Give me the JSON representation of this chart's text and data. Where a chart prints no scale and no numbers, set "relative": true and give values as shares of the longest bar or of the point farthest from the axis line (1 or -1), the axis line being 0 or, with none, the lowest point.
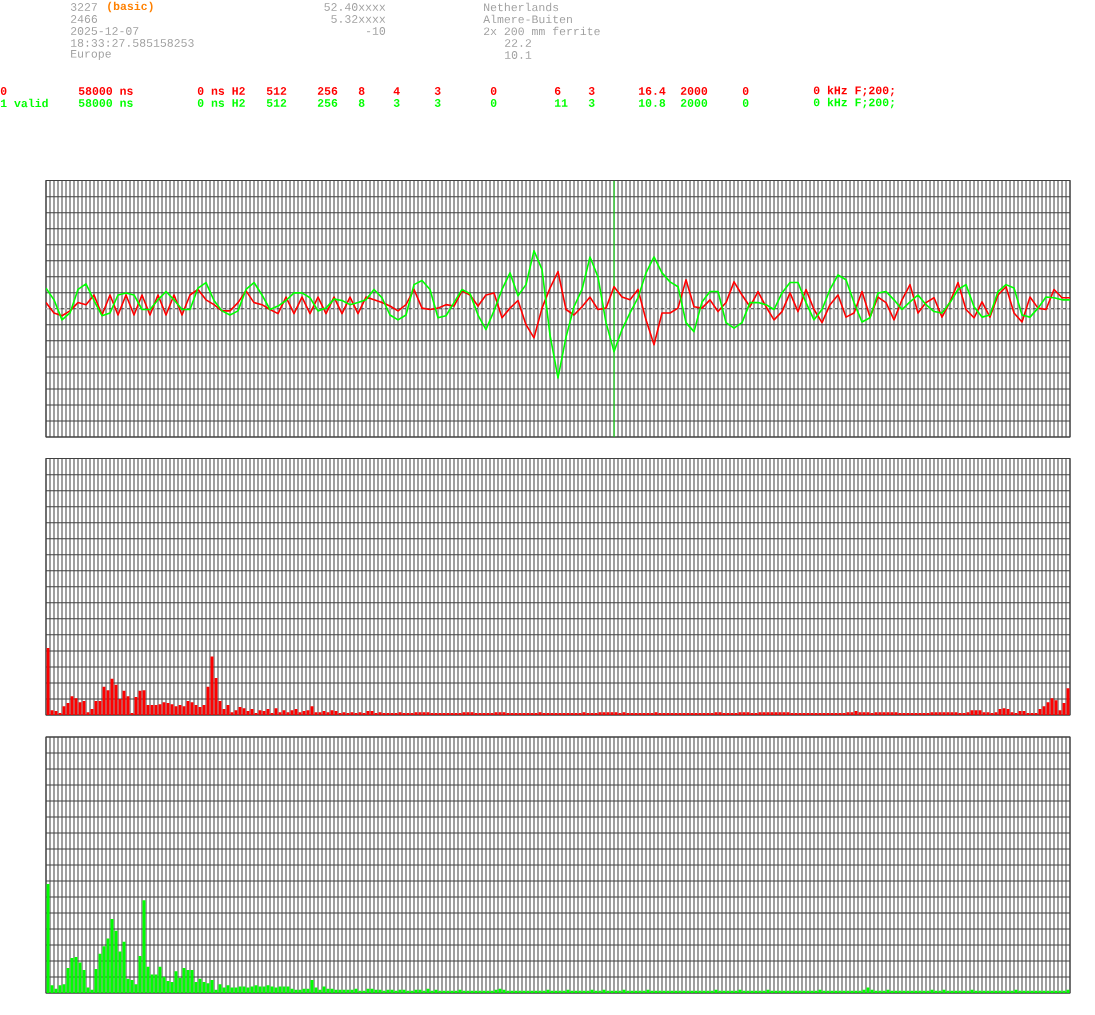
{
  "chart_data": [
    {
      "type": "line",
      "relative": true,
      "grid": true,
      "categories": [
        null,
        null,
        null,
        null,
        null,
        null,
        null,
        null,
        null,
        null,
        null,
        null,
        null,
        null,
        null,
        null,
        null,
        null,
        null,
        null,
        null,
        null,
        null,
        null,
        null,
        null,
        null,
        null,
        null,
        null,
        null,
        null,
        null,
        null,
        null,
        null,
        null,
        null,
        null,
        null,
        null,
        null,
        null,
        null,
        null,
        null,
        null,
        null,
        null,
        null,
        null,
        null,
        null,
        null,
        null,
        null,
        null,
        null,
        null,
        null,
        null,
        null,
        null,
        null,
        null,
        null,
        null,
        null,
        null,
        null,
        null,
        null,
        null,
        null,
        null,
        null,
        null,
        null,
        null,
        null,
        null,
        null,
        null,
        null,
        null,
        null,
        null,
        null,
        null,
        null,
        null,
        null,
        null,
        null,
        null,
        null,
        null,
        null,
        null,
        null,
        null,
        null,
        null,
        null,
        null,
        null,
        null,
        null,
        null,
        null,
        null,
        null,
        null,
        null,
        null,
        null,
        null,
        null,
        null,
        null,
        null,
        null,
        null,
        null,
        null,
        null,
        null,
        null,
        null
      ],
      "series": [
        {
          "color": "#ff0000",
          "values": [
            0.09,
            -0.06,
            -0.1,
            -0.03,
            0.09,
            0.06,
            0.2,
            -0.09,
            0.2,
            -0.09,
            0.2,
            -0.09,
            0.2,
            -0.09,
            0.2,
            -0.09,
            0.2,
            -0.09,
            0.2,
            0.28,
            0.13,
            0.06,
            -0.03,
            -0.03,
            0.09,
            0.26,
            0.09,
            0.06,
            -0.01,
            -0.07,
            0.17,
            -0.07,
            0.17,
            -0.07,
            0.17,
            -0.07,
            0.17,
            -0.07,
            0.17,
            -0.07,
            0.17,
            0.13,
            0.09,
            0.04,
            -0.03,
            0.06,
            0.28,
            0.01,
            -0.01,
            0.01,
            0.06,
            0.04,
            0.26,
            0.2,
            0.04,
            0.2,
            0.23,
            -0.13,
            0.01,
            0.12,
            -0.23,
            -0.42,
            0.01,
            0.3,
            0.54,
            -0.01,
            -0.09,
            0.03,
            0.17,
            -0.01,
            0.01,
            0.32,
            0.17,
            0.13,
            0.28,
            -0.16,
            -0.52,
            -0.06,
            -0.06,
            0.01,
            0.42,
            0.03,
            0.01,
            0.13,
            -0.04,
            0.09,
            0.39,
            0.2,
            0.03,
            0.25,
            0.03,
            -0.16,
            -0.04,
            0.23,
            -0.04,
            0.28,
            -0.01,
            -0.2,
            0.06,
            0.2,
            -0.12,
            -0.06,
            0.25,
            -0.12,
            0.17,
            0.09,
            -0.16,
            0.13,
            0.35,
            -0.06,
            0.09,
            0.16,
            -0.12,
            0.1,
            0.38,
            -0.01,
            -0.13,
            0.1,
            -0.12,
            0.2,
            0.32,
            -0.06,
            -0.19,
            0.17,
            0.01,
            -0.01,
            0.28,
            0.16,
            0.16
          ]
        },
        {
          "color": "#00ff00",
          "values": [
            0.3,
            0.13,
            -0.16,
            -0.06,
            0.28,
            0.36,
            0.12,
            -0.1,
            -0.06,
            0.2,
            0.23,
            0.2,
            -0.01,
            -0.01,
            0.13,
            0.25,
            0.13,
            -0.01,
            -0.01,
            0.3,
            0.38,
            0.12,
            -0.03,
            -0.09,
            -0.03,
            0.28,
            0.38,
            0.2,
            -0.01,
            0.04,
            0.12,
            0.23,
            0.23,
            0.16,
            -0.03,
            0.01,
            0.14,
            0.12,
            0.06,
            0.09,
            0.13,
            0.28,
            0.16,
            -0.09,
            -0.16,
            -0.09,
            0.35,
            0.41,
            0.28,
            -0.13,
            -0.1,
            0.09,
            0.28,
            0.22,
            -0.09,
            -0.3,
            -0.03,
            0.28,
            0.52,
            0.19,
            0.35,
            0.84,
            0.57,
            -0.38,
            -1,
            -0.41,
            0.03,
            0.28,
            0.75,
            0.46,
            -0.2,
            -0.62,
            -0.3,
            -0.06,
            0.16,
            0.52,
            0.75,
            0.52,
            0.39,
            0.32,
            -0.2,
            -0.33,
            0.1,
            0.25,
            0.25,
            -0.2,
            -0.28,
            -0.2,
            0.09,
            0.09,
            0.06,
            -0.01,
            0.23,
            0.38,
            0.38,
            0.09,
            -0.16,
            -0.01,
            0.28,
            0.49,
            0.42,
            0.09,
            -0.19,
            -0.13,
            0.23,
            0.25,
            0.13,
            -0.01,
            0.1,
            0.2,
            0.06,
            -0.04,
            -0.06,
            0.09,
            0.28,
            0.35,
            0.03,
            -0.12,
            -0.09,
            0.25,
            0.35,
            0.3,
            -0.09,
            -0.12,
            0.01,
            0.17,
            0.16,
            0.13,
            0.13
          ]
        }
      ],
      "ref_lines": [
        {
          "axis": "y",
          "value": 0,
          "color": "#ffffff",
          "line_style": "dashed"
        }
      ],
      "annotations": [
        "3227",
        "(basic)",
        "2466",
        "2025-12-07",
        "18:33:27.585158253",
        "Europe",
        "52.40xxxx",
        "5.32xxxx",
        "-10",
        "Netherlands",
        "Almere-Buiten",
        "2x 200 mm ferrite",
        "22.2",
        "10.1",
        "0",
        "58000 ns",
        "0 ns H2",
        "512",
        "256",
        "8",
        "4",
        "3",
        "0",
        "6",
        "3",
        "16.4",
        "2000",
        "0",
        "0 kHz F;200;",
        "1 valid",
        "58000 ns",
        "0 ns H2",
        "512",
        "256",
        "8",
        "3",
        "3",
        "0",
        "11",
        "3",
        "10.8",
        "2000",
        "0",
        "0 kHz F;200;"
      ]
    },
    {
      "type": "bar",
      "relative": true,
      "grid": true,
      "color": "#ff0000",
      "categories": [
        null,
        null,
        null,
        null,
        null,
        null,
        null,
        null,
        null,
        null,
        null,
        null,
        null,
        null,
        null,
        null,
        null,
        null,
        null,
        null,
        null,
        null,
        null,
        null,
        null,
        null,
        null,
        null,
        null,
        null,
        null,
        null,
        null,
        null,
        null,
        null,
        null,
        null,
        null,
        null,
        null,
        null,
        null,
        null,
        null,
        null,
        null,
        null,
        null,
        null,
        null,
        null,
        null,
        null,
        null,
        null,
        null,
        null,
        null,
        null,
        null,
        null,
        null,
        null,
        null,
        null,
        null,
        null,
        null,
        null,
        null,
        null,
        null,
        null,
        null,
        null,
        null,
        null,
        null,
        null,
        null,
        null,
        null,
        null,
        null,
        null,
        null,
        null,
        null,
        null,
        null,
        null,
        null,
        null,
        null,
        null,
        null,
        null,
        null,
        null,
        null,
        null,
        null,
        null,
        null,
        null,
        null,
        null,
        null,
        null,
        null,
        null,
        null,
        null,
        null,
        null,
        null,
        null,
        null,
        null,
        null,
        null,
        null,
        null,
        null,
        null,
        null,
        null,
        null,
        null,
        null,
        null,
        null,
        null,
        null,
        null,
        null,
        null,
        null,
        null,
        null,
        null,
        null,
        null,
        null,
        null,
        null,
        null,
        null,
        null,
        null,
        null,
        null,
        null,
        null,
        null,
        null,
        null,
        null,
        null,
        null,
        null,
        null,
        null,
        null,
        null,
        null,
        null,
        null,
        null,
        null,
        null,
        null,
        null,
        null,
        null,
        null,
        null,
        null,
        null,
        null,
        null,
        null,
        null,
        null,
        null,
        null,
        null,
        null,
        null,
        null,
        null,
        null,
        null,
        null,
        null,
        null,
        null,
        null,
        null,
        null,
        null,
        null,
        null,
        null,
        null,
        null,
        null,
        null,
        null,
        null,
        null,
        null,
        null,
        null,
        null,
        null,
        null,
        null,
        null,
        null,
        null,
        null,
        null,
        null,
        null,
        null,
        null,
        null,
        null,
        null,
        null,
        null,
        null,
        null,
        null,
        null,
        null,
        null,
        null,
        null,
        null,
        null,
        null,
        null,
        null,
        null,
        null,
        null,
        null,
        null,
        null,
        null,
        null,
        null,
        null
      ],
      "values": [
        1,
        0.07,
        0.06,
        0.03,
        0.13,
        0.18,
        0.28,
        0.25,
        0.19,
        0.21,
        0.04,
        0.09,
        0.21,
        0.21,
        0.42,
        0.37,
        0.54,
        0.45,
        0.24,
        0.36,
        0.28,
        0.03,
        0.27,
        0.36,
        0.37,
        0.15,
        0.15,
        0.15,
        0.16,
        0.19,
        0.18,
        0.16,
        0.13,
        0.15,
        0.13,
        0.21,
        0.19,
        0.15,
        0.12,
        0.15,
        0.42,
        0.87,
        0.55,
        0.21,
        0.09,
        0.15,
        0.04,
        0.07,
        0.12,
        0.1,
        0.06,
        0.09,
        0.03,
        0.07,
        0.06,
        0.09,
        0.03,
        0.1,
        0.04,
        0.07,
        0.04,
        0.07,
        0.09,
        0.04,
        0.06,
        0.07,
        0.13,
        0.04,
        0.04,
        0.06,
        0.04,
        0.07,
        0.06,
        0.03,
        0.04,
        0.03,
        0.04,
        0.03,
        0.04,
        0.03,
        0.06,
        0.06,
        0.03,
        0.04,
        0.03,
        0.03,
        0.03,
        0.03,
        0.04,
        0.03,
        0.03,
        0.03,
        0.04,
        0.04,
        0.04,
        0.04,
        0.03,
        0.03,
        0.03,
        0.03,
        0.03,
        0.03,
        0.03,
        0.03,
        0.04,
        0.04,
        0.04,
        0.03,
        0.03,
        0.03,
        0.03,
        0.03,
        0.04,
        0.04,
        0.04,
        0.03,
        0.03,
        0.03,
        0.03,
        0.03,
        0.03,
        0.03,
        0.03,
        0.04,
        0.03,
        0.03,
        0.03,
        0.03,
        0.03,
        0.03,
        0.03,
        0.03,
        0.03,
        0.03,
        0.04,
        0.03,
        0.03,
        0.03,
        0.04,
        0.04,
        0.04,
        0.04,
        0.04,
        0.03,
        0.04,
        0.03,
        0.03,
        0.03,
        0.03,
        0.03,
        0.03,
        0.03,
        0.04,
        0.03,
        0.03,
        0.03,
        0.03,
        0.03,
        0.03,
        0.03,
        0.03,
        0.03,
        0.03,
        0.03,
        0.03,
        0.03,
        0.03,
        0.04,
        0.04,
        0.03,
        0.03,
        0.03,
        0.03,
        0.04,
        0.04,
        0.04,
        0.03,
        0.03,
        0.04,
        0.04,
        0.04,
        0.04,
        0.04,
        0.04,
        0.04,
        0.04,
        0.03,
        0.03,
        0.03,
        0.03,
        0.03,
        0.03,
        0.03,
        0.03,
        0.03,
        0.03,
        0.03,
        0.03,
        0.03,
        0.03,
        0.04,
        0.04,
        0.06,
        0.04,
        0.04,
        0.04,
        0.03,
        0.04,
        0.04,
        0.04,
        0.04,
        0.04,
        0.04,
        0.03,
        0.03,
        0.03,
        0.03,
        0.03,
        0.03,
        0.03,
        0.03,
        0.04,
        0.04,
        0.04,
        0.04,
        0.04,
        0.04,
        0.04,
        0.03,
        0.03,
        0.04,
        0.07,
        0.07,
        0.07,
        0.04,
        0.04,
        0.03,
        0.04,
        0.09,
        0.1,
        0.09,
        0.04,
        0.03,
        0.06,
        0.06,
        0.03,
        0.03,
        0.03,
        0.09,
        0.13,
        0.19,
        0.25,
        0.22,
        0.07,
        0.18,
        0.4
      ]
    },
    {
      "type": "bar",
      "relative": true,
      "grid": true,
      "color": "#00ff00",
      "categories": [
        null,
        null,
        null,
        null,
        null,
        null,
        null,
        null,
        null,
        null,
        null,
        null,
        null,
        null,
        null,
        null,
        null,
        null,
        null,
        null,
        null,
        null,
        null,
        null,
        null,
        null,
        null,
        null,
        null,
        null,
        null,
        null,
        null,
        null,
        null,
        null,
        null,
        null,
        null,
        null,
        null,
        null,
        null,
        null,
        null,
        null,
        null,
        null,
        null,
        null,
        null,
        null,
        null,
        null,
        null,
        null,
        null,
        null,
        null,
        null,
        null,
        null,
        null,
        null,
        null,
        null,
        null,
        null,
        null,
        null,
        null,
        null,
        null,
        null,
        null,
        null,
        null,
        null,
        null,
        null,
        null,
        null,
        null,
        null,
        null,
        null,
        null,
        null,
        null,
        null,
        null,
        null,
        null,
        null,
        null,
        null,
        null,
        null,
        null,
        null,
        null,
        null,
        null,
        null,
        null,
        null,
        null,
        null,
        null,
        null,
        null,
        null,
        null,
        null,
        null,
        null,
        null,
        null,
        null,
        null,
        null,
        null,
        null,
        null,
        null,
        null,
        null,
        null,
        null,
        null,
        null,
        null,
        null,
        null,
        null,
        null,
        null,
        null,
        null,
        null,
        null,
        null,
        null,
        null,
        null,
        null,
        null,
        null,
        null,
        null,
        null,
        null,
        null,
        null,
        null,
        null,
        null,
        null,
        null,
        null,
        null,
        null,
        null,
        null,
        null,
        null,
        null,
        null,
        null,
        null,
        null,
        null,
        null,
        null,
        null,
        null,
        null,
        null,
        null,
        null,
        null,
        null,
        null,
        null,
        null,
        null,
        null,
        null,
        null,
        null,
        null,
        null,
        null,
        null,
        null,
        null,
        null,
        null,
        null,
        null,
        null,
        null,
        null,
        null,
        null,
        null,
        null,
        null,
        null,
        null,
        null,
        null,
        null,
        null,
        null,
        null,
        null,
        null,
        null,
        null,
        null,
        null,
        null,
        null,
        null,
        null,
        null,
        null,
        null,
        null,
        null,
        null,
        null,
        null,
        null,
        null,
        null,
        null,
        null,
        null,
        null,
        null,
        null,
        null,
        null,
        null,
        null,
        null,
        null,
        null,
        null,
        null,
        null,
        null,
        null,
        null
      ],
      "values": [
        1,
        0.07,
        0.04,
        0.07,
        0.08,
        0.23,
        0.32,
        0.33,
        0.28,
        0.21,
        0.05,
        0.03,
        0.22,
        0.36,
        0.43,
        0.5,
        0.68,
        0.57,
        0.38,
        0.47,
        0.13,
        0.12,
        0.08,
        0.34,
        0.85,
        0.24,
        0.17,
        0.17,
        0.24,
        0.15,
        0.11,
        0.1,
        0.2,
        0.14,
        0.23,
        0.21,
        0.21,
        0.1,
        0.13,
        0.1,
        0.09,
        0.12,
        0.03,
        0.08,
        0.05,
        0.07,
        0.05,
        0.05,
        0.06,
        0.06,
        0.05,
        0.06,
        0.07,
        0.06,
        0.06,
        0.07,
        0.06,
        0.05,
        0.06,
        0.06,
        0.06,
        0.04,
        0.03,
        0.03,
        0.04,
        0.04,
        0.12,
        0.05,
        0.03,
        0.06,
        0.04,
        0.04,
        0.03,
        0.03,
        0.03,
        0.03,
        0.03,
        0.04,
        0.02,
        0.02,
        0.04,
        0.04,
        0.03,
        0.03,
        0.02,
        0.03,
        0.03,
        0.02,
        0.03,
        0.03,
        0.02,
        0.02,
        0.03,
        0.03,
        0.02,
        0.04,
        0.02,
        0.03,
        0.02,
        0.02,
        0.02,
        0.02,
        0.02,
        0.03,
        0.02,
        0.02,
        0.02,
        0.02,
        0.02,
        0.02,
        0.02,
        0.02,
        0.03,
        0.04,
        0.03,
        0.02,
        0.02,
        0.02,
        0.02,
        0.02,
        0.02,
        0.02,
        0.02,
        0.02,
        0.02,
        0.03,
        0.02,
        0.02,
        0.02,
        0.02,
        0.03,
        0.02,
        0.02,
        0.02,
        0.02,
        0.02,
        0.03,
        0.02,
        0.02,
        0.03,
        0.02,
        0.02,
        0.02,
        0.02,
        0.03,
        0.02,
        0.02,
        0.02,
        0.02,
        0.02,
        0.03,
        0.02,
        0.02,
        0.02,
        0.02,
        0.02,
        0.02,
        0.02,
        0.02,
        0.02,
        0.02,
        0.02,
        0.02,
        0.02,
        0.02,
        0.02,
        0.02,
        0.03,
        0.02,
        0.02,
        0.02,
        0.02,
        0.02,
        0.03,
        0.02,
        0.02,
        0.02,
        0.02,
        0.02,
        0.02,
        0.03,
        0.02,
        0.02,
        0.02,
        0.02,
        0.02,
        0.02,
        0.02,
        0.02,
        0.02,
        0.02,
        0.02,
        0.02,
        0.03,
        0.02,
        0.02,
        0.02,
        0.02,
        0.02,
        0.02,
        0.02,
        0.02,
        0.02,
        0.02,
        0.03,
        0.05,
        0.03,
        0.02,
        0.02,
        0.02,
        0.03,
        0.02,
        0.02,
        0.02,
        0.02,
        0.02,
        0.02,
        0.02,
        0.02,
        0.02,
        0.02,
        0.03,
        0.02,
        0.02,
        0.03,
        0.02,
        0.02,
        0.02,
        0.02,
        0.02,
        0.02,
        0.03,
        0.02,
        0.02,
        0.02,
        0.02,
        0.02,
        0.02,
        0.02,
        0.02,
        0.02,
        0.02,
        0.03,
        0.02,
        0.02,
        0.02,
        0.02,
        0.02,
        0.02,
        0.02,
        0.02,
        0.02,
        0.02,
        0.02,
        0.02,
        0.03
      ]
    }
  ]
}
